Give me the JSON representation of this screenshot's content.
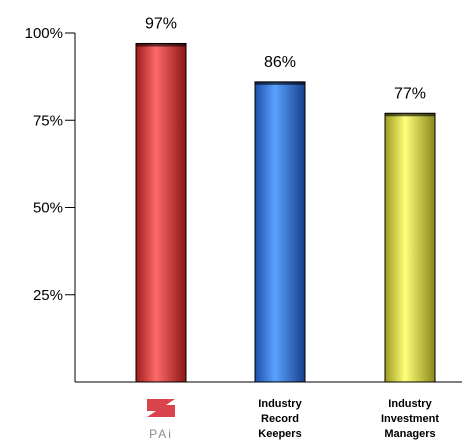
{
  "chart_data": {
    "type": "bar",
    "categories": [
      "PAi",
      "Industry Record Keepers",
      "Industry Investment Managers"
    ],
    "category_label_lines": [
      [],
      [
        "Industry",
        "Record",
        "Keepers"
      ],
      [
        "Industry",
        "Investment",
        "Managers"
      ]
    ],
    "values": [
      97,
      86,
      77
    ],
    "data_labels": [
      "97%",
      "86%",
      "77%"
    ],
    "yticks": [
      25,
      50,
      75,
      100
    ],
    "ytick_labels": [
      "25%",
      "50%",
      "75%",
      "100%"
    ],
    "ylim": [
      0,
      100
    ],
    "grid": false,
    "colors": [
      "#e84a4a",
      "#3c82e6",
      "#f2f04a"
    ],
    "title": "",
    "xlabel": "",
    "ylabel": ""
  },
  "logo": {
    "text": "PAi",
    "color": "#d9434b"
  }
}
